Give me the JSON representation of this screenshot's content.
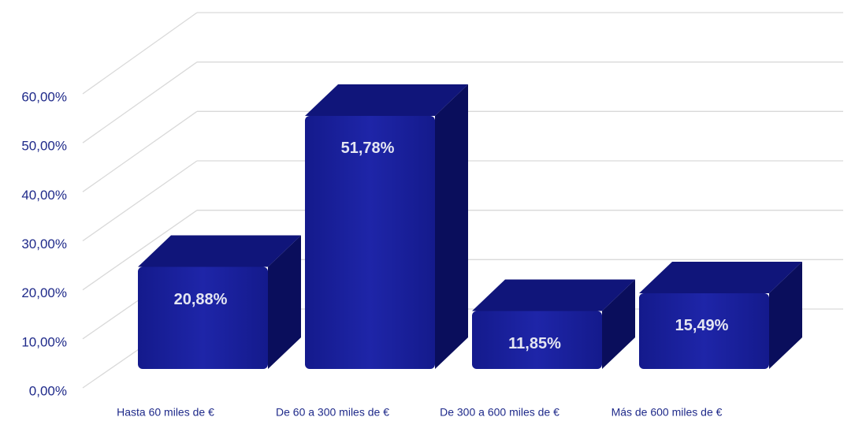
{
  "chart_data": {
    "type": "bar3d",
    "categories": [
      "Hasta 60 miles de €",
      "De 60 a 300 miles de €",
      "De 300 a 600 miles de €",
      "Más de 600 miles de €"
    ],
    "values": [
      20.88,
      51.78,
      11.85,
      15.49
    ],
    "value_labels": [
      "20,88%",
      "51,78%",
      "11,85%",
      "15,49%"
    ],
    "color": "#1c22a0",
    "ylim": [
      0,
      60
    ],
    "yticks": [
      {
        "value": 0,
        "label": "0,00%"
      },
      {
        "value": 10,
        "label": "10,00%"
      },
      {
        "value": 20,
        "label": "20,00%"
      },
      {
        "value": 30,
        "label": "30,00%"
      },
      {
        "value": 40,
        "label": "40,00%"
      },
      {
        "value": 50,
        "label": "50,00%"
      },
      {
        "value": 60,
        "label": "60,00%"
      }
    ],
    "grid": true
  }
}
